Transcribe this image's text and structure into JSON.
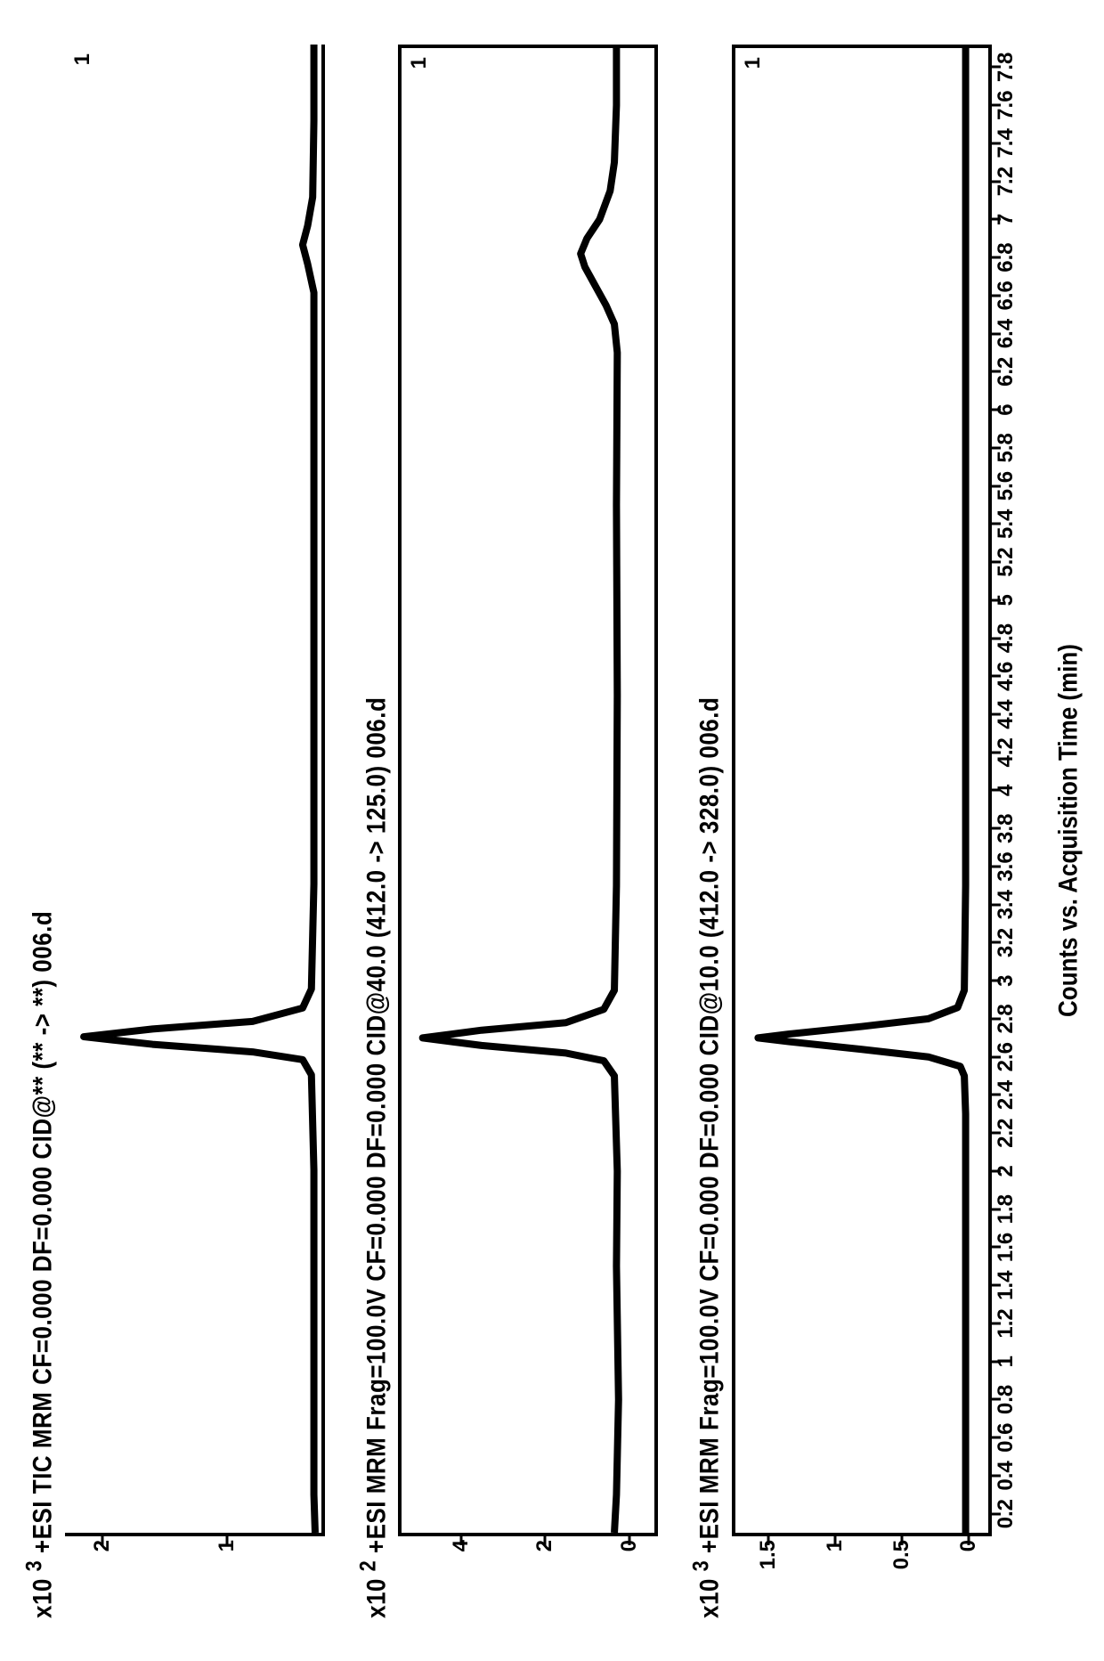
{
  "figure": {
    "background_color": "#ffffff",
    "line_color": "#000000",
    "font_color": "#000000",
    "tick_fontsize": 24,
    "title_fontsize": 26,
    "line_width": 3,
    "x_axis_label": "Counts vs. Acquisition Time (min)",
    "x_range": [
      0.1,
      7.9
    ],
    "x_ticks": [
      0.2,
      0.4,
      0.6,
      0.8,
      1,
      1.2,
      1.4,
      1.6,
      1.8,
      2,
      2.2,
      2.4,
      2.6,
      2.8,
      3,
      3.2,
      3.4,
      3.6,
      3.8,
      4,
      4.2,
      4.4,
      4.6,
      4.8,
      5,
      5.2,
      5.4,
      5.6,
      5.8,
      6,
      6.2,
      6.4,
      6.6,
      6.8,
      7,
      7.2,
      7.4,
      7.6,
      7.8
    ]
  },
  "panels": [
    {
      "id": "panel1",
      "title_prefix": "x10",
      "title_exp": "3",
      "title_rest": "  +ESI TIC MRM CF=0.000 DF=0.000 CID@** (** -> **) 006.d",
      "series_label": "1",
      "border_style": "top-open",
      "y_range": [
        0.25,
        2.3
      ],
      "y_ticks": [
        1,
        2
      ],
      "trace": [
        [
          0.1,
          0.3
        ],
        [
          0.3,
          0.31
        ],
        [
          1.0,
          0.31
        ],
        [
          2.0,
          0.31
        ],
        [
          2.5,
          0.33
        ],
        [
          2.58,
          0.4
        ],
        [
          2.62,
          0.8
        ],
        [
          2.66,
          1.6
        ],
        [
          2.7,
          2.15
        ],
        [
          2.74,
          1.6
        ],
        [
          2.78,
          0.8
        ],
        [
          2.85,
          0.4
        ],
        [
          2.95,
          0.33
        ],
        [
          3.5,
          0.31
        ],
        [
          5.0,
          0.31
        ],
        [
          6.6,
          0.31
        ],
        [
          6.75,
          0.36
        ],
        [
          6.85,
          0.4
        ],
        [
          6.95,
          0.36
        ],
        [
          7.1,
          0.32
        ],
        [
          7.5,
          0.31
        ],
        [
          7.9,
          0.31
        ]
      ]
    },
    {
      "id": "panel2",
      "title_prefix": "x10",
      "title_exp": "2",
      "title_rest": "  +ESI MRM Frag=100.0V CF=0.000 DF=0.000 CID@40.0 (412.0 -> 125.0) 006.d",
      "series_label": "1",
      "border_style": "bordered",
      "y_range": [
        -0.6,
        5.4
      ],
      "y_ticks": [
        0,
        2,
        4
      ],
      "trace": [
        [
          0.1,
          0.35
        ],
        [
          0.3,
          0.3
        ],
        [
          0.8,
          0.25
        ],
        [
          1.5,
          0.3
        ],
        [
          2.0,
          0.28
        ],
        [
          2.5,
          0.35
        ],
        [
          2.58,
          0.6
        ],
        [
          2.62,
          1.5
        ],
        [
          2.66,
          3.5
        ],
        [
          2.7,
          4.9
        ],
        [
          2.74,
          3.5
        ],
        [
          2.78,
          1.5
        ],
        [
          2.85,
          0.6
        ],
        [
          2.95,
          0.35
        ],
        [
          3.5,
          0.3
        ],
        [
          4.5,
          0.28
        ],
        [
          5.5,
          0.3
        ],
        [
          6.3,
          0.28
        ],
        [
          6.45,
          0.35
        ],
        [
          6.55,
          0.55
        ],
        [
          6.65,
          0.8
        ],
        [
          6.75,
          1.05
        ],
        [
          6.82,
          1.15
        ],
        [
          6.9,
          1.0
        ],
        [
          7.0,
          0.7
        ],
        [
          7.15,
          0.45
        ],
        [
          7.3,
          0.35
        ],
        [
          7.6,
          0.3
        ],
        [
          7.9,
          0.3
        ]
      ]
    },
    {
      "id": "panel3",
      "title_prefix": "x10",
      "title_exp": "3",
      "title_rest": "  +ESI MRM Frag=100.0V CF=0.000 DF=0.000 CID@10.0 (412.0 -> 328.0) 006.d",
      "series_label": "1",
      "border_style": "bordered",
      "y_range": [
        -0.15,
        1.75
      ],
      "y_ticks": [
        0,
        0.5,
        1,
        1.5
      ],
      "trace": [
        [
          0.1,
          0.02
        ],
        [
          0.5,
          0.02
        ],
        [
          1.5,
          0.02
        ],
        [
          2.3,
          0.02
        ],
        [
          2.5,
          0.03
        ],
        [
          2.55,
          0.06
        ],
        [
          2.6,
          0.3
        ],
        [
          2.64,
          0.8
        ],
        [
          2.68,
          1.35
        ],
        [
          2.7,
          1.58
        ],
        [
          2.72,
          1.35
        ],
        [
          2.76,
          0.8
        ],
        [
          2.8,
          0.3
        ],
        [
          2.86,
          0.08
        ],
        [
          2.95,
          0.03
        ],
        [
          3.5,
          0.02
        ],
        [
          5.0,
          0.02
        ],
        [
          6.5,
          0.02
        ],
        [
          7.5,
          0.02
        ],
        [
          7.9,
          0.02
        ]
      ]
    }
  ]
}
